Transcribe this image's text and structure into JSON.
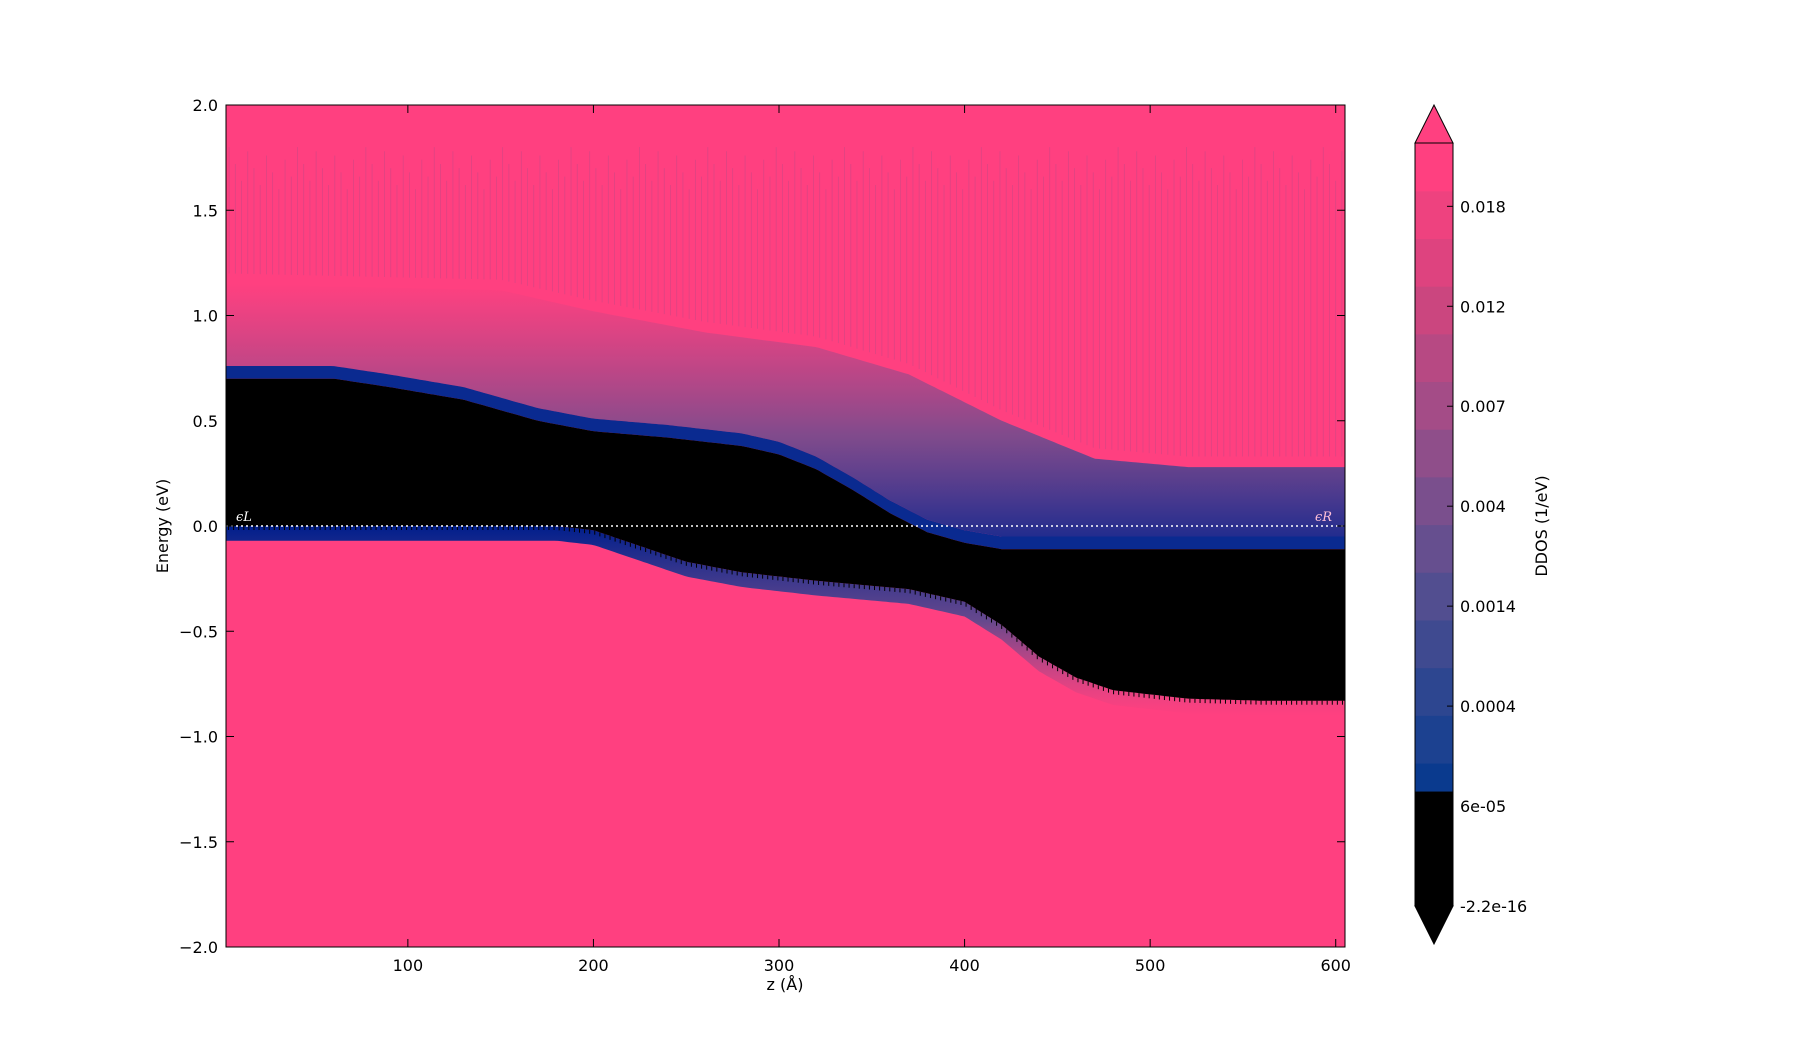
{
  "chart_data": {
    "type": "heatmap",
    "title": "",
    "xlabel": "z (Å)",
    "ylabel": "Energy (eV)",
    "xlim": [
      2,
      605
    ],
    "ylim": [
      -2.0,
      2.0
    ],
    "x_ticks": [
      100,
      200,
      300,
      400,
      500,
      600
    ],
    "y_ticks": [
      -2.0,
      -1.5,
      -1.0,
      -0.5,
      0.0,
      0.5,
      1.0,
      1.5,
      2.0
    ],
    "x_tick_labels": [
      "100",
      "200",
      "300",
      "400",
      "500",
      "600"
    ],
    "y_tick_labels": [
      "−2.0",
      "−1.5",
      "−1.0",
      "−0.5",
      "0.0",
      "0.5",
      "1.0",
      "1.5",
      "2.0"
    ],
    "grid": false,
    "colorbar": {
      "label": "DDOS (1/eV)",
      "extend": "both",
      "tick_labels": [
        "-2.2e-16",
        "6e-05",
        "0.0004",
        "0.0014",
        "0.004",
        "0.007",
        "0.012",
        "0.018"
      ],
      "low_color": "#000000",
      "high_color": "#ff4080",
      "colors": [
        "#000000",
        "#001e8c",
        "#0a3a8e",
        "#1c4190",
        "#2d4690",
        "#3f4a90",
        "#524e90",
        "#664f8f",
        "#7a4f8d",
        "#8f4e8a",
        "#a44c87",
        "#b74983",
        "#cb467f",
        "#de437f",
        "#ee427f",
        "#ff4080"
      ]
    },
    "annotations": {
      "left_fermi": "ϵL",
      "right_fermi": "ϵR",
      "fermi_level": 0.0
    },
    "valence_band_edge": {
      "z": [
        2,
        60,
        90,
        130,
        170,
        200,
        240,
        280,
        300,
        320,
        340,
        360,
        380,
        400,
        420,
        605
      ],
      "energy": [
        0.7,
        0.7,
        0.66,
        0.6,
        0.5,
        0.45,
        0.42,
        0.38,
        0.34,
        0.27,
        0.17,
        0.06,
        -0.03,
        -0.08,
        -0.11,
        -0.11
      ]
    },
    "conduction_band_edge": {
      "z": [
        2,
        180,
        200,
        220,
        250,
        280,
        320,
        370,
        400,
        420,
        440,
        460,
        480,
        520,
        560,
        605
      ],
      "energy": [
        0.0,
        0.0,
        -0.02,
        -0.08,
        -0.17,
        -0.22,
        -0.26,
        -0.3,
        -0.36,
        -0.47,
        -0.62,
        -0.72,
        -0.78,
        -0.82,
        -0.83,
        -0.83
      ]
    },
    "upper_band_edge": {
      "z": [
        2,
        150,
        200,
        260,
        320,
        370,
        420,
        470,
        520,
        605
      ],
      "energy": [
        1.15,
        1.12,
        1.02,
        0.92,
        0.85,
        0.72,
        0.5,
        0.32,
        0.28,
        0.28
      ]
    }
  }
}
